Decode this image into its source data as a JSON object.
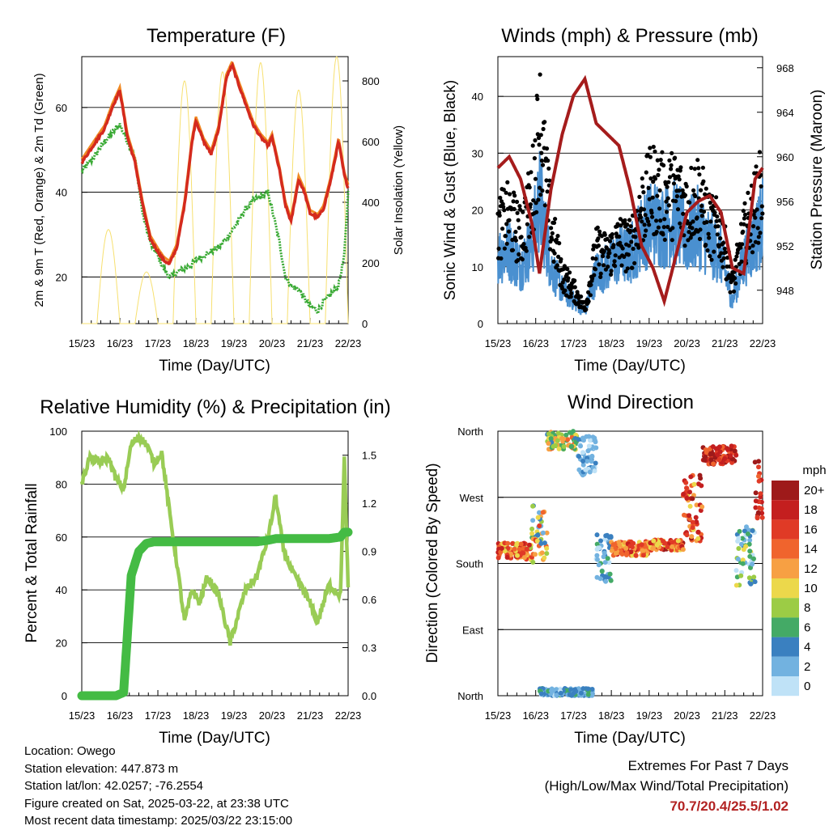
{
  "colors": {
    "red": "#d42a1e",
    "orange": "#f08a24",
    "green_dew": "#3aaa35",
    "yellow_solar": "#f7e070",
    "blue_wind": "#4a90d0",
    "black_gust": "#000000",
    "maroon_pressure": "#a51c1c",
    "rh_line": "#99cc55",
    "precip_line": "#44bb44",
    "extremes_text": "#b22222"
  },
  "x_tick_labels": [
    "15/23",
    "16/23",
    "17/23",
    "18/23",
    "19/23",
    "20/23",
    "21/23",
    "22/23"
  ],
  "x_label": "Time (Day/UTC)",
  "temperature": {
    "title": "Temperature (F)",
    "ylabel_left": "2m & 9m T (Red, Orange) & 2m Td (Green)",
    "ylabel_right": "Solar Insolation (Yellow)",
    "ylim_left": [
      9,
      72
    ],
    "ylim_right": [
      0,
      880
    ],
    "yticks_left": [
      "20",
      "40",
      "60"
    ],
    "yticks_right": [
      "0",
      "200",
      "400",
      "600",
      "800"
    ]
  },
  "winds": {
    "title": "Winds (mph) & Pressure (mb)",
    "ylabel_left": "Sonic Wind & Gust (Blue, Black)",
    "ylabel_right": "Station Pressure (Maroon)",
    "ylim_left": [
      0,
      47
    ],
    "ylim_right": [
      945.0,
      969.0
    ],
    "yticks_left": [
      "0",
      "10",
      "20",
      "30",
      "40"
    ],
    "yticks_right": [
      "948",
      "952",
      "956",
      "960",
      "964",
      "968"
    ]
  },
  "humidity": {
    "title": "Relative Humidity (%) & Precipitation (in)",
    "ylabel_left": "Percent & Total Rainfall",
    "ylim_left": [
      0,
      100
    ],
    "ylim_right": [
      0,
      1.65
    ],
    "yticks_left": [
      "0",
      "20",
      "40",
      "60",
      "80",
      "100"
    ],
    "yticks_right": [
      "0.0",
      "0.3",
      "0.6",
      "0.9",
      "1.2",
      "1.5"
    ]
  },
  "direction": {
    "title": "Wind Direction",
    "ylabel": "Direction (Colored By Speed)",
    "yticks": [
      "North",
      "East",
      "South",
      "West",
      "North"
    ],
    "legend_title": "mph",
    "legend_labels": [
      "20+",
      "18",
      "16",
      "14",
      "12",
      "10",
      "8",
      "6",
      "4",
      "2",
      "0"
    ],
    "legend_colors": [
      "#9e1a1a",
      "#c41f1f",
      "#e03a26",
      "#f0642d",
      "#f7a043",
      "#ecd84b",
      "#9ccc45",
      "#44aa66",
      "#3a80c0",
      "#72b2e0",
      "#bfe2f7"
    ]
  },
  "info": {
    "location": "Location: Owego",
    "elevation": "Station elevation: 447.873 m",
    "latlon": "Station lat/lon: 42.0257; -76.2554",
    "created": "Figure created on Sat, 2025-03-22, at 23:38 UTC",
    "recent": "Most recent data timestamp: 2025/03/22 23:15:00"
  },
  "extremes": {
    "title": "Extremes For Past 7 Days",
    "subtitle": "(High/Low/Max Wind/Total Precipitation)",
    "values": "70.7/20.4/25.5/1.02"
  },
  "chart_data": [
    {
      "type": "line",
      "title": "Temperature (F)",
      "xlabel": "Time (Day/UTC)",
      "ylabel": "2m & 9m T (Red, Orange) & 2m Td (Green)",
      "x_unit": "days since 15/23 UTC",
      "x": [
        0,
        0.3,
        0.6,
        0.8,
        1.0,
        1.2,
        1.4,
        1.6,
        1.8,
        2.0,
        2.15,
        2.3,
        2.5,
        2.7,
        2.9,
        3.0,
        3.2,
        3.4,
        3.6,
        3.8,
        3.95,
        4.1,
        4.3,
        4.5,
        4.7,
        4.9,
        5.0,
        5.2,
        5.35,
        5.5,
        5.7,
        5.85,
        6.0,
        6.2,
        6.35,
        6.55,
        6.75,
        6.9,
        7.0
      ],
      "series": [
        {
          "name": "2m T",
          "values": [
            47,
            51,
            55,
            60,
            64,
            53,
            47,
            37,
            29,
            26,
            24,
            23,
            27,
            37,
            52,
            57,
            52,
            49,
            55,
            67,
            70,
            66,
            61,
            56,
            53,
            51,
            53,
            45,
            37,
            33,
            43,
            40,
            35,
            34,
            36,
            43,
            52,
            44,
            41
          ]
        },
        {
          "name": "2m Td",
          "values": [
            45,
            48,
            52,
            54,
            56,
            52,
            48,
            35,
            28,
            25,
            22,
            20,
            21,
            22,
            23,
            24,
            25,
            26,
            27,
            29,
            31,
            33,
            36,
            38,
            39,
            40,
            36,
            28,
            20,
            18,
            17,
            15,
            13,
            12,
            14,
            16,
            18,
            25,
            40
          ]
        },
        {
          "name": "Solar Insolation",
          "axis": "right",
          "peaks_x": [
            0.7,
            1.7,
            2.7,
            3.7,
            4.7,
            5.7,
            6.7
          ],
          "peaks": [
            310,
            170,
            800,
            830,
            860,
            770,
            880
          ]
        }
      ]
    },
    {
      "type": "line",
      "title": "Winds (mph) & Pressure (mb)",
      "xlabel": "Time (Day/UTC)",
      "x_unit": "days since 15/23 UTC",
      "x": [
        0,
        0.3,
        0.6,
        0.9,
        1.1,
        1.4,
        1.7,
        2.0,
        2.3,
        2.6,
        2.9,
        3.2,
        3.5,
        3.8,
        4.1,
        4.4,
        4.7,
        5.0,
        5.3,
        5.6,
        5.9,
        6.2,
        6.5,
        6.8,
        7.0
      ],
      "series": [
        {
          "name": "Gust",
          "values": [
            20,
            22,
            18,
            26,
            42,
            20,
            10,
            7,
            3,
            15,
            14,
            17,
            16,
            24,
            28,
            26,
            27,
            24,
            27,
            20,
            19,
            8,
            18,
            24,
            28
          ]
        },
        {
          "name": "Sonic Wind",
          "values": [
            12,
            13,
            10,
            14,
            22,
            10,
            6,
            4,
            2,
            9,
            10,
            12,
            12,
            16,
            18,
            17,
            18,
            15,
            17,
            14,
            12,
            4,
            11,
            15,
            18
          ]
        },
        {
          "name": "Station Pressure",
          "axis": "right",
          "values": [
            959.0,
            960.0,
            958.0,
            954.0,
            949.5,
            957.0,
            962.0,
            965.5,
            967.0,
            963.0,
            962.0,
            961.0,
            957.0,
            952.0,
            950.0,
            947.0,
            951.0,
            955.0,
            956.0,
            956.5,
            955.0,
            950.0,
            949.5,
            958.0,
            959.0
          ]
        }
      ]
    },
    {
      "type": "line",
      "title": "Relative Humidity (%) & Precipitation (in)",
      "xlabel": "Time (Day/UTC)",
      "ylabel": "Percent & Total Rainfall",
      "x_unit": "days since 15/23 UTC",
      "x": [
        0,
        0.2,
        0.5,
        0.7,
        0.9,
        1.1,
        1.3,
        1.5,
        1.7,
        1.9,
        2.1,
        2.3,
        2.5,
        2.7,
        2.9,
        3.1,
        3.3,
        3.6,
        3.9,
        4.1,
        4.3,
        4.6,
        4.9,
        5.1,
        5.3,
        5.6,
        5.9,
        6.2,
        6.5,
        6.8,
        6.9,
        7.0
      ],
      "series": [
        {
          "name": "Relative Humidity",
          "values": [
            80,
            90,
            88,
            90,
            82,
            78,
            95,
            98,
            95,
            88,
            92,
            70,
            50,
            28,
            40,
            35,
            45,
            38,
            20,
            30,
            40,
            45,
            60,
            75,
            55,
            45,
            38,
            28,
            42,
            38,
            90,
            40
          ]
        },
        {
          "name": "Total Precipitation",
          "axis": "right",
          "values": [
            0.0,
            0.0,
            0.0,
            0.0,
            0.0,
            0.02,
            0.75,
            0.9,
            0.95,
            0.96,
            0.96,
            0.96,
            0.96,
            0.96,
            0.96,
            0.96,
            0.96,
            0.96,
            0.96,
            0.96,
            0.96,
            0.96,
            0.97,
            0.98,
            0.98,
            0.98,
            0.98,
            0.98,
            0.98,
            0.99,
            1.02,
            1.02
          ]
        }
      ]
    },
    {
      "type": "scatter",
      "title": "Wind Direction",
      "xlabel": "Time (Day/UTC)",
      "ylabel": "Direction (Colored By Speed)",
      "x_unit": "days since 15/23 UTC",
      "y_unit": "degrees (0=North, 90=East, 180=South, 270=West, 360=North)",
      "clusters": [
        {
          "x": [
            0.0,
            0.9
          ],
          "y": [
            185,
            208
          ],
          "speed": [
            8,
            18
          ]
        },
        {
          "x": [
            0.9,
            1.3
          ],
          "y": [
            180,
            260
          ],
          "speed": [
            2,
            16
          ]
        },
        {
          "x": [
            1.3,
            2.1
          ],
          "y": [
            335,
            360
          ],
          "speed": [
            4,
            14
          ]
        },
        {
          "x": [
            2.1,
            2.6
          ],
          "y": [
            300,
            355
          ],
          "speed": [
            0,
            4
          ]
        },
        {
          "x": [
            2.6,
            3.0
          ],
          "y": [
            150,
            220
          ],
          "speed": [
            0,
            6
          ]
        },
        {
          "x": [
            3.0,
            4.0
          ],
          "y": [
            190,
            210
          ],
          "speed": [
            10,
            18
          ]
        },
        {
          "x": [
            4.0,
            4.9
          ],
          "y": [
            198,
            212
          ],
          "speed": [
            10,
            20
          ]
        },
        {
          "x": [
            4.9,
            5.4
          ],
          "y": [
            210,
            300
          ],
          "speed": [
            10,
            20
          ]
        },
        {
          "x": [
            5.4,
            6.3
          ],
          "y": [
            315,
            340
          ],
          "speed": [
            14,
            22
          ]
        },
        {
          "x": [
            6.3,
            6.8
          ],
          "y": [
            150,
            230
          ],
          "speed": [
            0,
            10
          ]
        },
        {
          "x": [
            6.8,
            7.0
          ],
          "y": [
            240,
            320
          ],
          "speed": [
            14,
            20
          ]
        },
        {
          "x": [
            1.1,
            2.5
          ],
          "y": [
            0,
            10
          ],
          "speed": [
            0,
            6
          ]
        }
      ]
    }
  ]
}
